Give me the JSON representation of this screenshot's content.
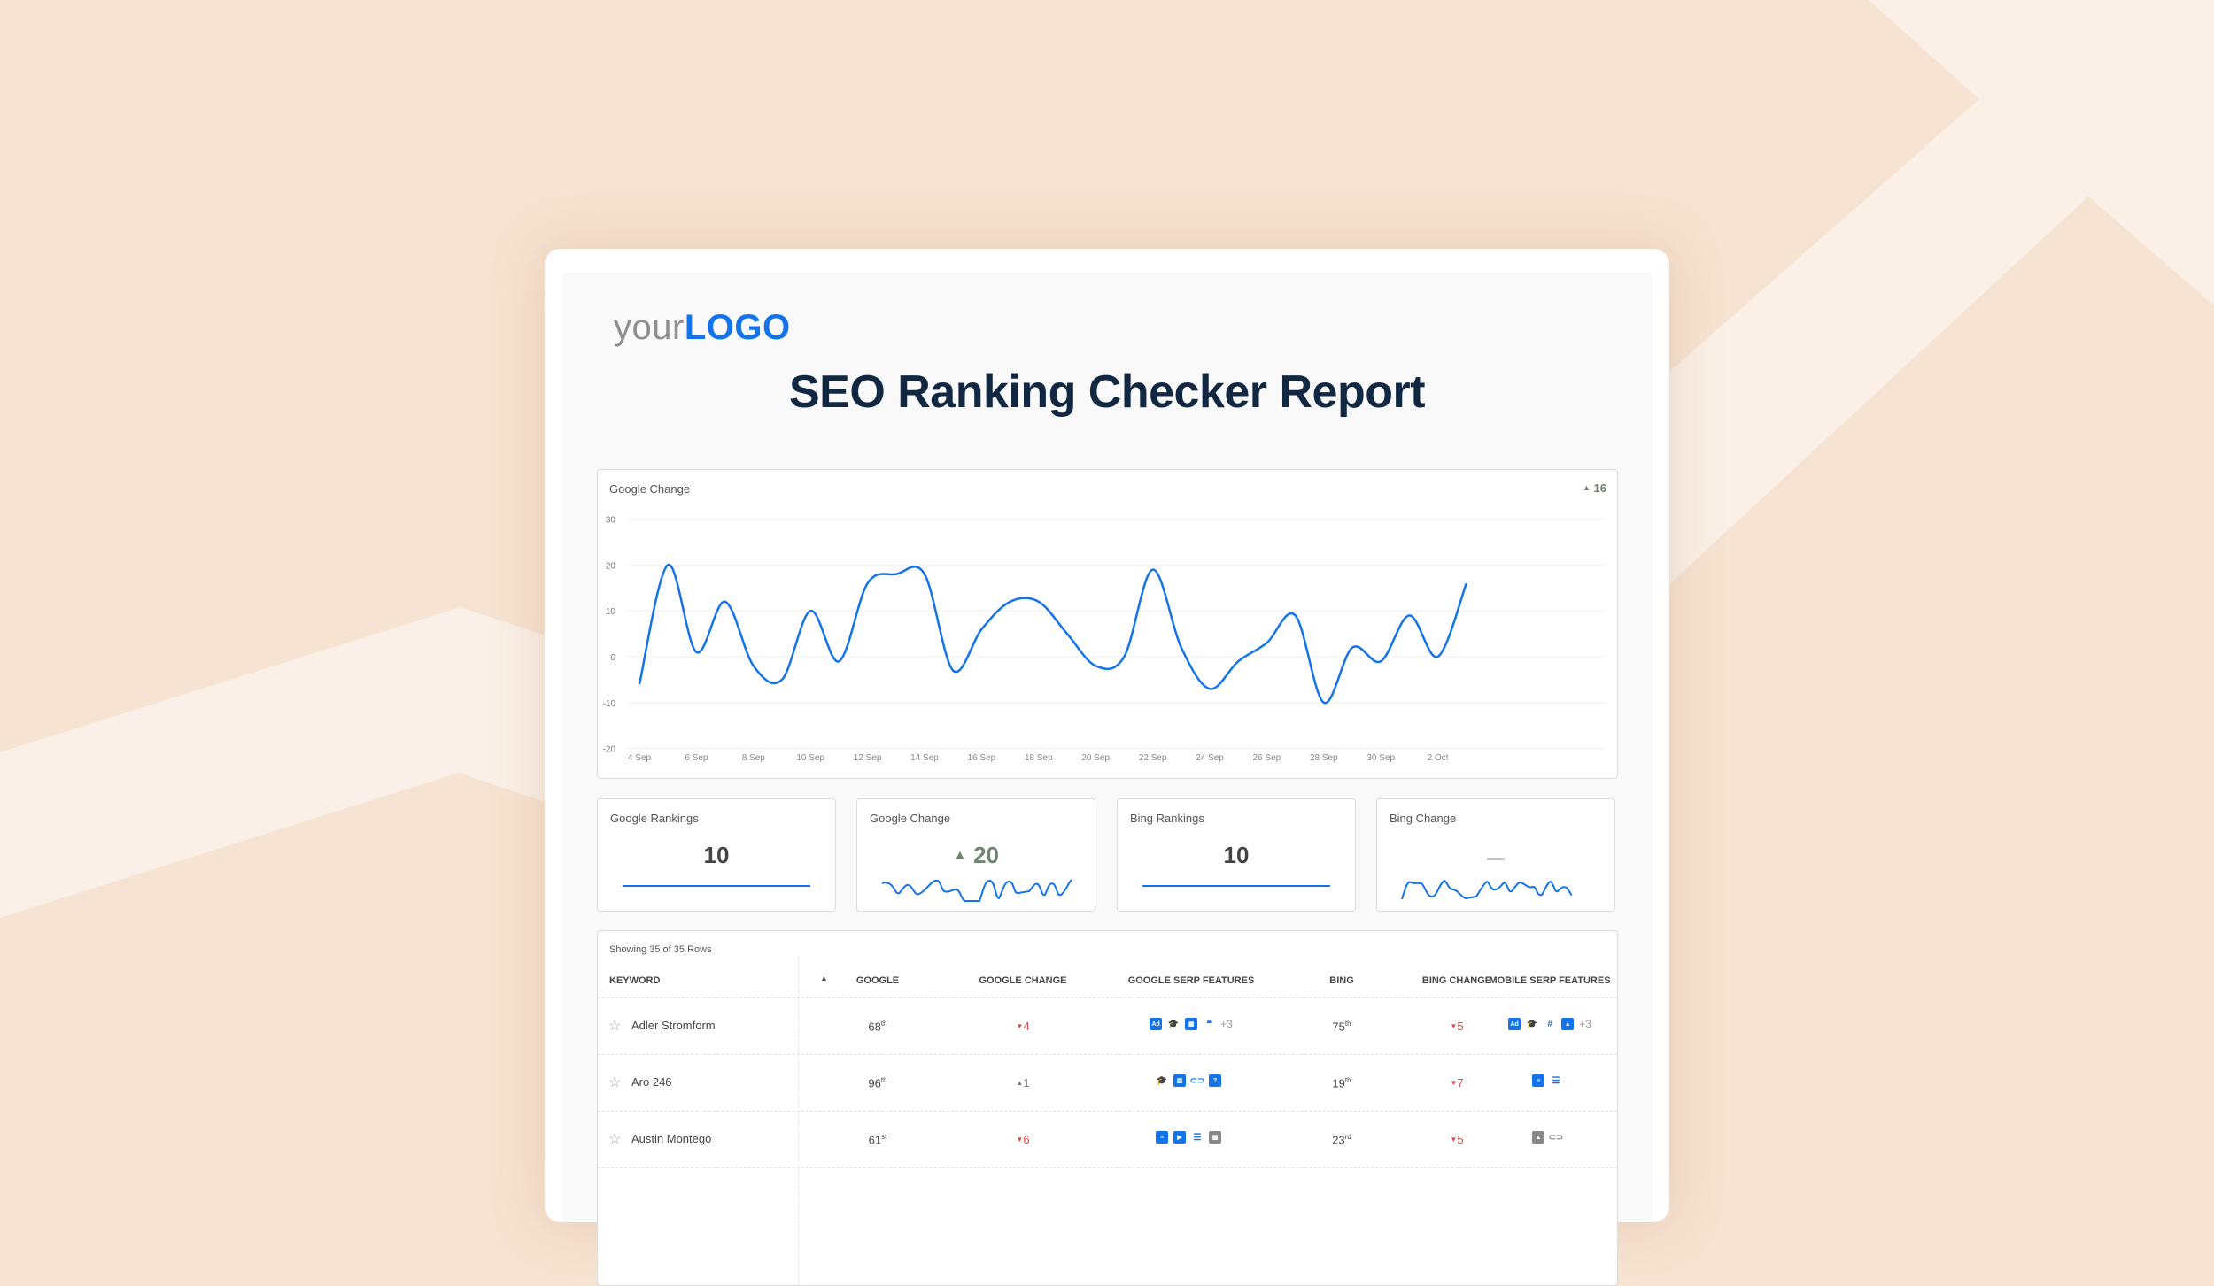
{
  "colors": {
    "background": "#f7e3d1",
    "background_band": "#faf0e7",
    "accent_blue": "#1273eb",
    "title_navy": "#122842",
    "down_red": "#e04545",
    "up_green": "#6f8570"
  },
  "logo": {
    "prefix": "your",
    "brand": "LOGO"
  },
  "report": {
    "title": "SEO Ranking Checker Report"
  },
  "main_chart": {
    "title": "Google Change",
    "delta_icon": "triangle-up-icon",
    "delta_value": "16"
  },
  "chart_data": {
    "type": "line",
    "title": "Google Change",
    "xlabel": "",
    "ylabel": "",
    "ylim": [
      -20,
      30
    ],
    "yticks": [
      30,
      20,
      10,
      0,
      -10,
      -20
    ],
    "xtick_labels": [
      "4 Sep",
      "6 Sep",
      "8 Sep",
      "10 Sep",
      "12 Sep",
      "14 Sep",
      "16 Sep",
      "18 Sep",
      "20 Sep",
      "22 Sep",
      "24 Sep",
      "26 Sep",
      "28 Sep",
      "30 Sep",
      "2 Oct"
    ],
    "grid": true,
    "legend": "none",
    "x": [
      "4 Sep",
      "5 Sep",
      "6 Sep",
      "7 Sep",
      "8 Sep",
      "9 Sep",
      "10 Sep",
      "11 Sep",
      "12 Sep",
      "13 Sep",
      "14 Sep",
      "15 Sep",
      "16 Sep",
      "17 Sep",
      "18 Sep",
      "19 Sep",
      "20 Sep",
      "21 Sep",
      "22 Sep",
      "23 Sep",
      "24 Sep",
      "25 Sep",
      "26 Sep",
      "27 Sep",
      "28 Sep",
      "29 Sep",
      "30 Sep",
      "1 Oct",
      "2 Oct",
      "3 Oct"
    ],
    "series": [
      {
        "name": "Google Change",
        "color": "#1273eb",
        "values": [
          -6,
          20,
          1,
          12,
          -2,
          -5,
          10,
          -1,
          16,
          18,
          18,
          -3,
          6,
          12,
          12,
          5,
          -2,
          0,
          19,
          2,
          -7,
          -1,
          3,
          9,
          -10,
          2,
          -1,
          9,
          0,
          16
        ]
      }
    ]
  },
  "kpis": [
    {
      "label": "Google Rankings",
      "value": "10",
      "trend": "flat"
    },
    {
      "label": "Google Change",
      "value": "20",
      "icon": "triangle-up-icon",
      "trend": "sparkline"
    },
    {
      "label": "Bing Rankings",
      "value": "10",
      "trend": "flat"
    },
    {
      "label": "Bing Change",
      "value": "—",
      "trend": "sparkline"
    }
  ],
  "table": {
    "showing": "Showing 35 of 35 Rows",
    "columns": [
      "KEYWORD",
      "GOOGLE",
      "GOOGLE CHANGE",
      "GOOGLE SERP FEATURES",
      "BING",
      "BING CHANGE",
      "MOBILE SERP FEATURES"
    ],
    "rows": [
      {
        "keyword": "Adler Stromform",
        "google": "68",
        "google_suffix": "th",
        "google_change": "4",
        "google_change_dir": "down",
        "google_serp": [
          "ad-icon",
          "graduation-cap-icon",
          "calculator-icon",
          "quote-icon"
        ],
        "google_serp_more": "+3",
        "bing": "75",
        "bing_suffix": "th",
        "bing_change": "5",
        "bing_change_dir": "down",
        "mobile_serp": [
          "ad-top-icon",
          "graduation-cap-icon",
          "hashtag-icon",
          "image-icon"
        ],
        "mobile_serp_more": "+3"
      },
      {
        "keyword": "Aro 246",
        "google": "96",
        "google_suffix": "th",
        "google_change": "1",
        "google_change_dir": "up",
        "google_serp": [
          "graduation-cap-icon",
          "building-icon",
          "link-icon",
          "question-chat-icon"
        ],
        "google_serp_more": "",
        "bing": "19",
        "bing_suffix": "th",
        "bing_change": "7",
        "bing_change_dir": "down",
        "mobile_serp": [
          "list-icon",
          "indent-list-icon"
        ],
        "mobile_serp_more": ""
      },
      {
        "keyword": "Austin Montego",
        "google": "61",
        "google_suffix": "st",
        "google_change": "6",
        "google_change_dir": "down",
        "google_serp": [
          "list-icon",
          "video-play-icon",
          "indent-list-icon",
          "calculator-icon"
        ],
        "google_serp_more": "",
        "bing": "23",
        "bing_suffix": "rd",
        "bing_change": "5",
        "bing_change_dir": "down",
        "mobile_serp": [
          "image-icon",
          "link-icon"
        ],
        "mobile_serp_more": ""
      }
    ]
  }
}
